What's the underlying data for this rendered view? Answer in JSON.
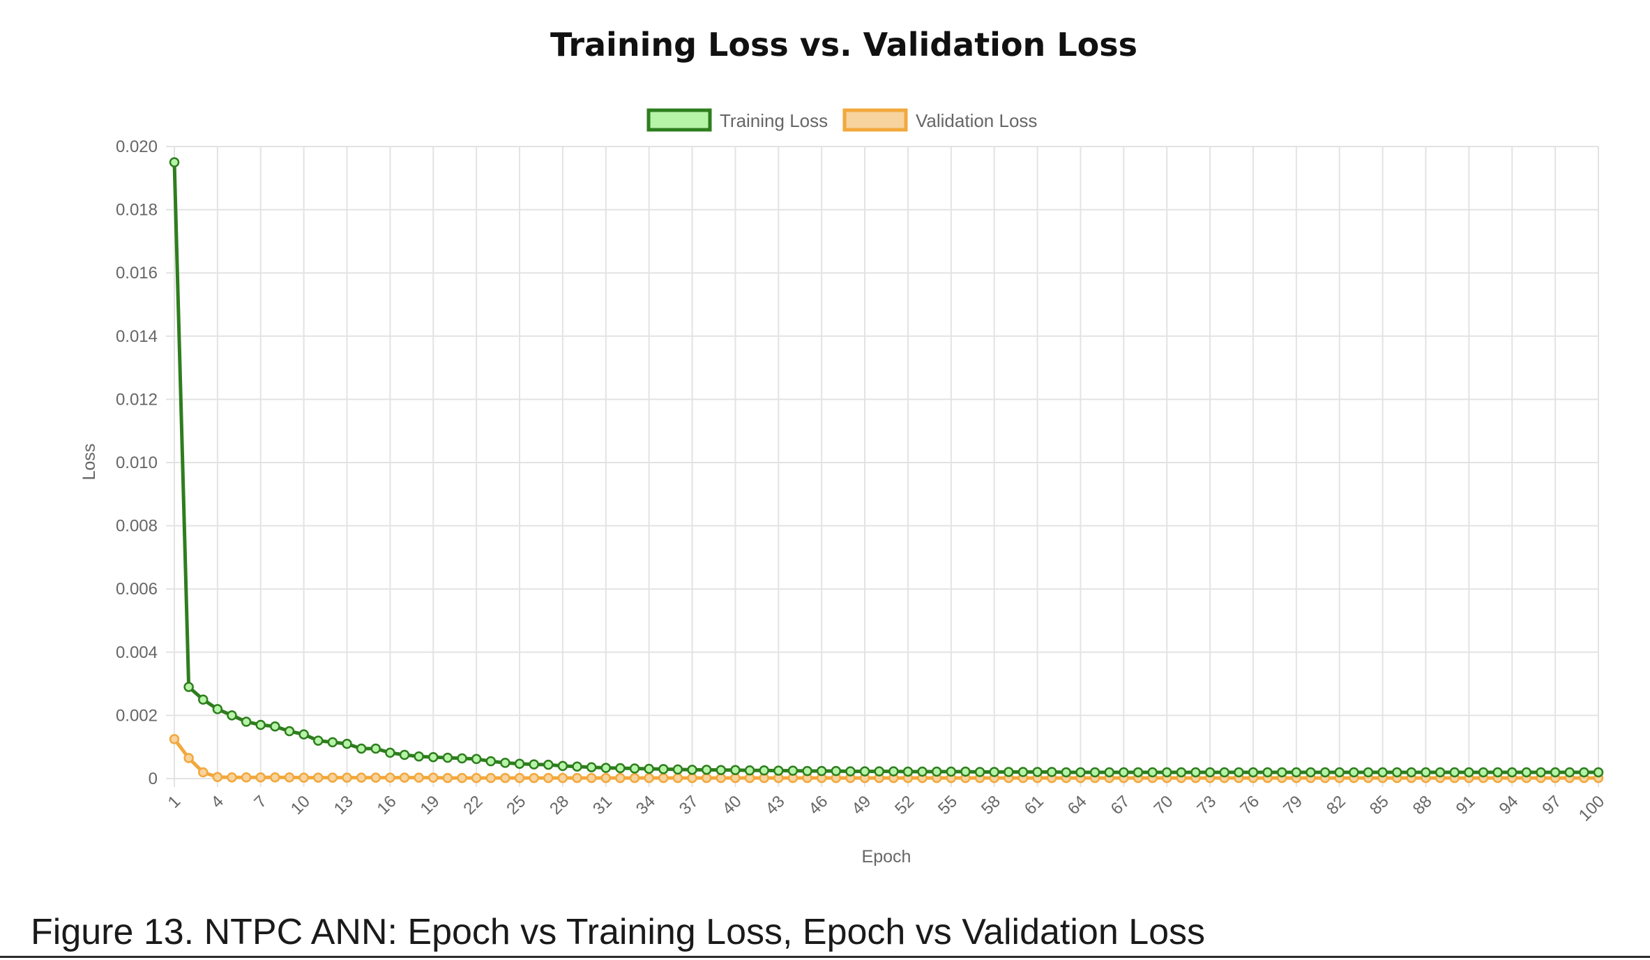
{
  "chart_data": {
    "type": "line",
    "title": "Training Loss vs. Validation Loss",
    "xlabel": "Epoch",
    "ylabel": "Loss",
    "ylim": [
      0,
      0.02
    ],
    "yticks": [
      "0",
      "0.002",
      "0.004",
      "0.006",
      "0.008",
      "0.010",
      "0.012",
      "0.014",
      "0.016",
      "0.018",
      "0.020"
    ],
    "xtick_labels": [
      "1",
      "4",
      "7",
      "10",
      "13",
      "16",
      "19",
      "22",
      "25",
      "28",
      "31",
      "34",
      "37",
      "40",
      "43",
      "46",
      "49",
      "52",
      "55",
      "58",
      "61",
      "64",
      "67",
      "70",
      "73",
      "76",
      "79",
      "82",
      "85",
      "88",
      "91",
      "94",
      "97",
      "100"
    ],
    "x_range": [
      1,
      100
    ],
    "grid": true,
    "legend_position": "top-center",
    "series": [
      {
        "name": "Training Loss",
        "line_color": "#2e7d1e",
        "fill_color": "#b6f5a8",
        "values": [
          0.0195,
          0.0029,
          0.0025,
          0.0022,
          0.002,
          0.0018,
          0.0017,
          0.00165,
          0.0015,
          0.0014,
          0.0012,
          0.00115,
          0.0011,
          0.00095,
          0.00095,
          0.00082,
          0.00075,
          0.0007,
          0.00068,
          0.00066,
          0.00064,
          0.00062,
          0.00055,
          0.0005,
          0.00047,
          0.00045,
          0.00044,
          0.0004,
          0.00038,
          0.00036,
          0.00034,
          0.00033,
          0.00032,
          0.00031,
          0.0003,
          0.00029,
          0.00028,
          0.00028,
          0.00027,
          0.00027,
          0.00026,
          0.00026,
          0.00025,
          0.00025,
          0.00024,
          0.00024,
          0.00024,
          0.00023,
          0.00023,
          0.00023,
          0.00023,
          0.00022,
          0.00022,
          0.00022,
          0.00022,
          0.00022,
          0.00021,
          0.00021,
          0.00021,
          0.00021,
          0.00021,
          0.00021,
          0.0002,
          0.0002,
          0.0002,
          0.0002,
          0.0002,
          0.0002,
          0.0002,
          0.0002,
          0.0002,
          0.0002,
          0.0002,
          0.0002,
          0.0002,
          0.0002,
          0.0002,
          0.0002,
          0.0002,
          0.0002,
          0.0002,
          0.0002,
          0.0002,
          0.0002,
          0.0002,
          0.0002,
          0.0002,
          0.0002,
          0.0002,
          0.0002,
          0.0002,
          0.0002,
          0.0002,
          0.0002,
          0.0002,
          0.0002,
          0.0002,
          0.0002,
          0.0002,
          0.0002
        ]
      },
      {
        "name": "Validation Loss",
        "line_color": "#f2a83c",
        "fill_color": "#f7d39e",
        "values": [
          0.00125,
          0.00065,
          0.0002,
          5e-05,
          4e-05,
          4e-05,
          4e-05,
          4e-05,
          4e-05,
          3e-05,
          3e-05,
          3e-05,
          3e-05,
          3e-05,
          3e-05,
          3e-05,
          3e-05,
          3e-05,
          3e-05,
          2e-05,
          2e-05,
          2e-05,
          2e-05,
          2e-05,
          2e-05,
          2e-05,
          2e-05,
          2e-05,
          2e-05,
          2e-05,
          2e-05,
          2e-05,
          2e-05,
          2e-05,
          2e-05,
          2e-05,
          2e-05,
          2e-05,
          2e-05,
          2e-05,
          2e-05,
          2e-05,
          2e-05,
          2e-05,
          2e-05,
          2e-05,
          2e-05,
          2e-05,
          2e-05,
          2e-05,
          2e-05,
          2e-05,
          2e-05,
          2e-05,
          2e-05,
          2e-05,
          2e-05,
          2e-05,
          2e-05,
          2e-05,
          2e-05,
          2e-05,
          2e-05,
          2e-05,
          2e-05,
          2e-05,
          2e-05,
          2e-05,
          2e-05,
          2e-05,
          2e-05,
          2e-05,
          2e-05,
          2e-05,
          2e-05,
          2e-05,
          2e-05,
          2e-05,
          2e-05,
          2e-05,
          2e-05,
          2e-05,
          2e-05,
          2e-05,
          2e-05,
          2e-05,
          2e-05,
          2e-05,
          2e-05,
          2e-05,
          2e-05,
          2e-05,
          2e-05,
          2e-05,
          2e-05,
          2e-05,
          2e-05,
          2e-05,
          2e-05,
          2e-05
        ]
      }
    ]
  },
  "caption": "Figure 13. NTPC ANN: Epoch vs Training Loss, Epoch vs Validation Loss"
}
